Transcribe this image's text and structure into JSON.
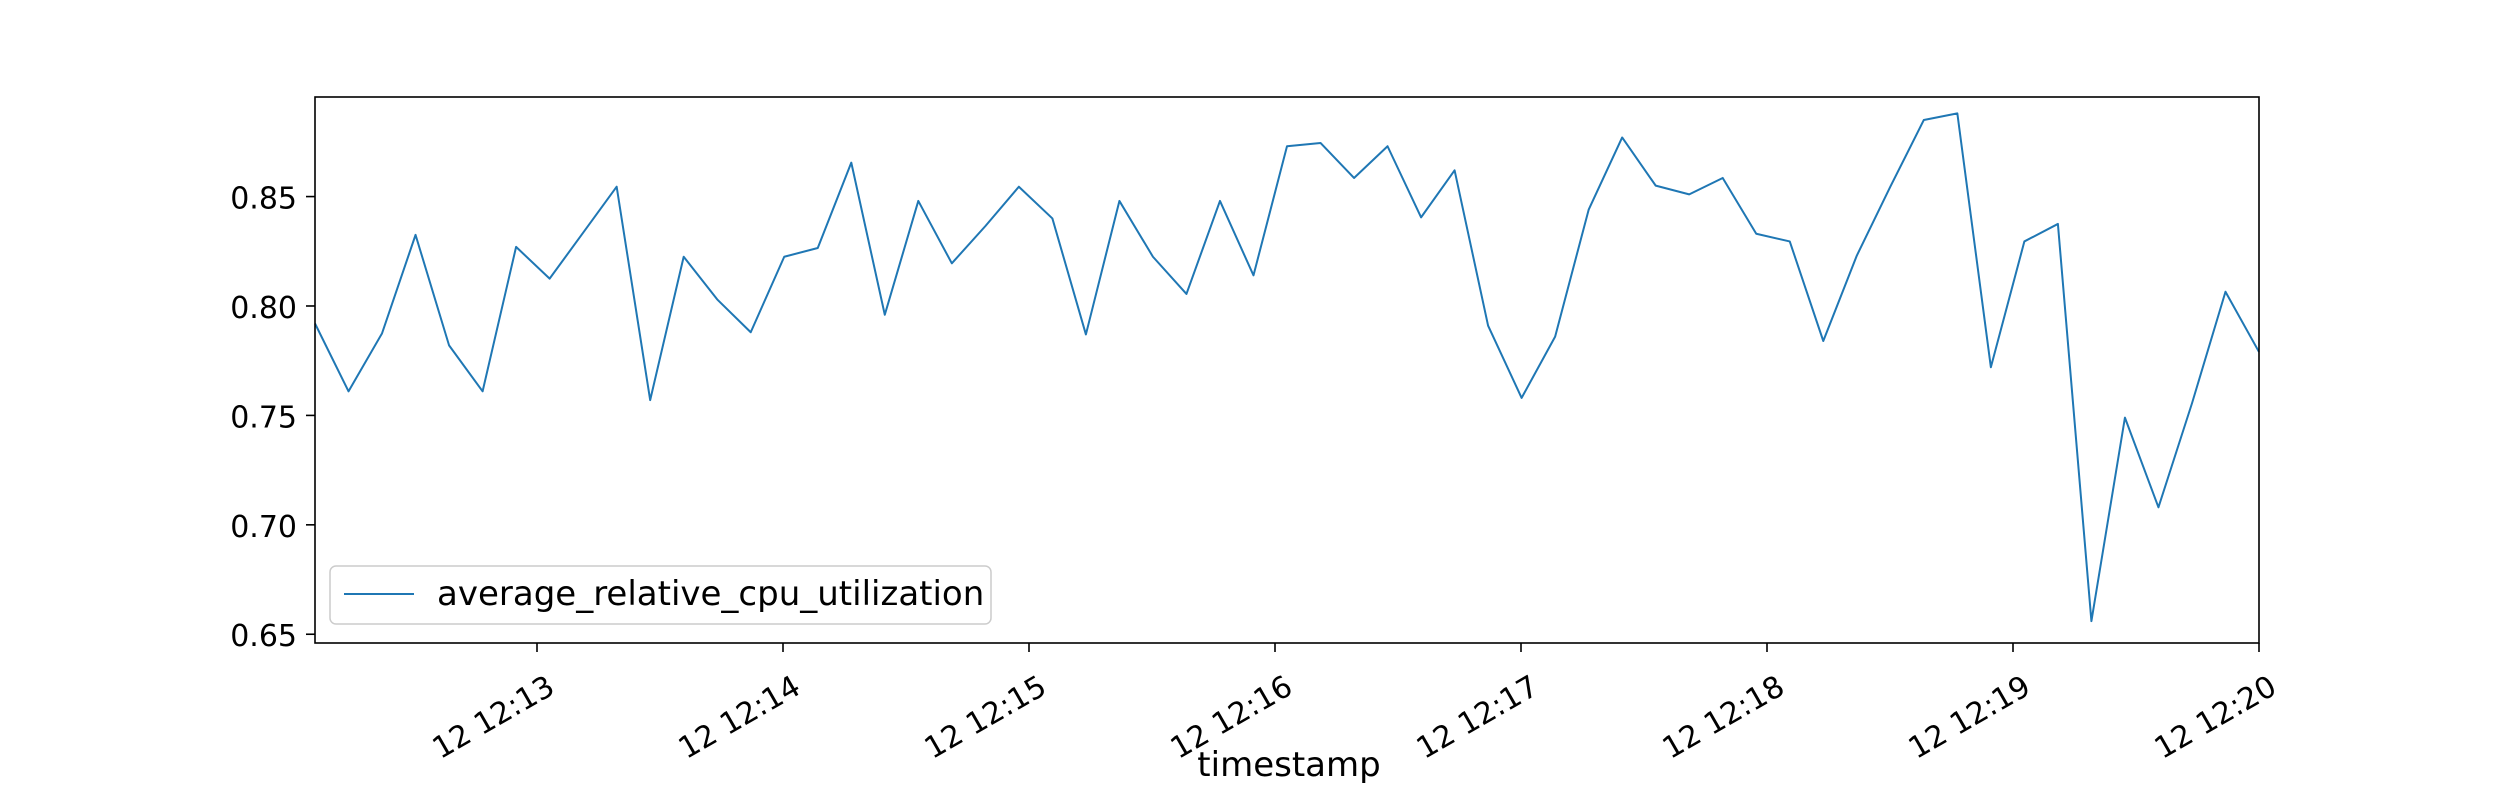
{
  "chart_data": {
    "type": "line",
    "title": "",
    "xlabel": "timestamp",
    "ylabel": "",
    "grid": false,
    "legend_position": "lower-left",
    "x_ticks": [
      "12 12:13",
      "12 12:14",
      "12 12:15",
      "12 12:16",
      "12 12:17",
      "12 12:18",
      "12 12:19",
      "12 12:20"
    ],
    "y_ticks": [
      "0.65",
      "0.70",
      "0.75",
      "0.80",
      "0.85"
    ],
    "ylim": [
      0.646,
      0.8955
    ],
    "series": [
      {
        "name": "average_relative_cpu_utilization",
        "color": "#1f77b4",
        "values": [
          0.792,
          0.761,
          0.7875,
          0.8325,
          0.782,
          0.761,
          0.827,
          0.8125,
          0.8335,
          0.8545,
          0.757,
          0.8225,
          0.803,
          0.788,
          0.8225,
          0.8265,
          0.8655,
          0.796,
          0.848,
          0.8195,
          0.8365,
          0.8545,
          0.84,
          0.787,
          0.848,
          0.8225,
          0.8055,
          0.848,
          0.814,
          0.873,
          0.8745,
          0.8585,
          0.873,
          0.8405,
          0.862,
          0.791,
          0.758,
          0.786,
          0.844,
          0.877,
          0.855,
          0.851,
          0.8585,
          0.833,
          0.8295,
          0.784,
          0.823,
          0.8545,
          0.885,
          0.888,
          0.772,
          0.8295,
          0.8375,
          0.656,
          0.749,
          0.708,
          0.7555,
          0.8065,
          0.779
        ]
      }
    ]
  }
}
